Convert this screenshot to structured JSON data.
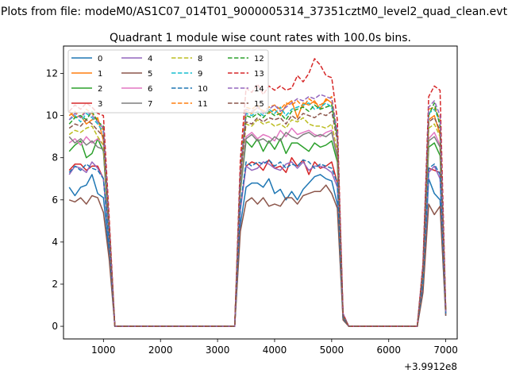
{
  "chart_data": {
    "type": "line",
    "suptitle": "Plots from file: modeM0/AS1C07_014T01_9000005314_37351cztM0_level2_quad_clean.evt",
    "title": "Quadrant 1 module wise count rates with 100.0s bins.",
    "xlabel": "",
    "ylabel": "",
    "x_offset_label": "+3.9912e8",
    "xlim": [
      300,
      7200
    ],
    "ylim": [
      -0.6,
      13.3
    ],
    "xticks": [
      1000,
      2000,
      3000,
      4000,
      5000,
      6000,
      7000
    ],
    "xtick_labels": [
      "1000",
      "2000",
      "3000",
      "4000",
      "5000",
      "6000",
      "7000"
    ],
    "yticks": [
      0,
      2,
      4,
      6,
      8,
      10,
      12
    ],
    "ytick_labels": [
      "0",
      "2",
      "4",
      "6",
      "8",
      "10",
      "12"
    ],
    "grid": false,
    "legend": {
      "location": "top-left",
      "columns": 4
    },
    "x": [
      400,
      500,
      600,
      700,
      800,
      900,
      1000,
      1100,
      1200,
      3300,
      3400,
      3500,
      3600,
      3700,
      3800,
      3900,
      4000,
      4100,
      4200,
      4300,
      4400,
      4500,
      4600,
      4700,
      4800,
      4900,
      5000,
      5100,
      5200,
      5300,
      6500,
      6600,
      6700,
      6800,
      6900,
      7000
    ],
    "series": [
      {
        "name": "0",
        "color": "#1f77b4",
        "dash": false,
        "values": [
          6.6,
          6.2,
          6.6,
          6.7,
          7.2,
          6.3,
          6.1,
          3.5,
          0,
          0,
          4.8,
          6.6,
          6.8,
          6.8,
          6.6,
          7.0,
          6.3,
          6.5,
          6.0,
          6.4,
          6.0,
          6.5,
          6.8,
          7.1,
          7.2,
          7.0,
          6.9,
          5.8,
          0.4,
          0,
          0,
          1.8,
          7.0,
          6.3,
          6.0,
          0.5
        ]
      },
      {
        "name": "1",
        "color": "#ff7f0e",
        "dash": false,
        "values": [
          10.2,
          9.9,
          10.0,
          9.6,
          9.8,
          9.9,
          8.8,
          4.8,
          0,
          0,
          7.0,
          10.2,
          10.1,
          10.4,
          10.2,
          10.1,
          10.3,
          10.0,
          10.5,
          10.7,
          9.9,
          10.6,
          10.5,
          10.7,
          10.3,
          10.8,
          10.6,
          9.0,
          0.5,
          0,
          0,
          2.5,
          9.8,
          10.0,
          9.1,
          0.7
        ]
      },
      {
        "name": "2",
        "color": "#2ca02c",
        "dash": false,
        "values": [
          8.3,
          8.6,
          8.8,
          8.0,
          8.2,
          8.9,
          8.3,
          4.2,
          0,
          0,
          6.4,
          8.8,
          8.5,
          8.9,
          8.3,
          8.8,
          8.4,
          8.9,
          8.2,
          8.7,
          8.7,
          8.5,
          8.3,
          8.7,
          8.5,
          8.6,
          8.8,
          7.8,
          0.5,
          0,
          0,
          2.3,
          8.5,
          8.7,
          8.1,
          0.6
        ]
      },
      {
        "name": "3",
        "color": "#d62728",
        "dash": false,
        "values": [
          7.4,
          7.7,
          7.7,
          7.4,
          7.6,
          7.6,
          7.0,
          4.0,
          0,
          0,
          5.6,
          7.6,
          7.8,
          7.7,
          7.4,
          7.9,
          7.5,
          7.6,
          7.3,
          8.0,
          7.6,
          7.9,
          7.2,
          7.8,
          7.5,
          7.6,
          7.8,
          6.8,
          0.4,
          0,
          0,
          2.1,
          7.5,
          7.4,
          7.3,
          0.6
        ]
      },
      {
        "name": "4",
        "color": "#9467bd",
        "dash": false,
        "values": [
          7.2,
          7.6,
          7.5,
          7.3,
          7.8,
          7.5,
          7.0,
          4.0,
          0,
          0,
          5.5,
          7.6,
          7.4,
          7.5,
          7.8,
          7.7,
          7.5,
          7.4,
          7.7,
          7.8,
          7.5,
          7.8,
          7.4,
          7.6,
          7.6,
          7.5,
          7.3,
          6.6,
          0.4,
          0,
          0,
          2.0,
          7.3,
          7.6,
          7.0,
          0.6
        ]
      },
      {
        "name": "5",
        "color": "#8c564b",
        "dash": false,
        "values": [
          6.0,
          5.9,
          6.1,
          5.8,
          6.2,
          6.1,
          5.4,
          3.2,
          0,
          0,
          4.5,
          5.9,
          6.1,
          5.8,
          6.1,
          5.7,
          5.8,
          5.7,
          6.1,
          6.1,
          5.8,
          6.2,
          6.3,
          6.4,
          6.4,
          6.7,
          6.3,
          5.6,
          0.3,
          0,
          0,
          1.6,
          5.8,
          5.3,
          5.7,
          0.5
        ]
      },
      {
        "name": "6",
        "color": "#e377c2",
        "dash": false,
        "values": [
          8.7,
          8.9,
          8.6,
          9.0,
          8.7,
          8.9,
          8.6,
          4.4,
          0,
          0,
          6.6,
          9.0,
          9.2,
          8.9,
          9.1,
          9.0,
          8.8,
          9.3,
          9.0,
          9.4,
          9.1,
          9.2,
          9.3,
          9.1,
          9.0,
          9.2,
          9.3,
          8.1,
          0.5,
          0,
          0,
          2.4,
          8.9,
          9.2,
          8.6,
          0.6
        ]
      },
      {
        "name": "7",
        "color": "#7f7f7f",
        "dash": false,
        "values": [
          9.0,
          8.7,
          8.9,
          8.6,
          8.8,
          8.5,
          8.4,
          4.3,
          0,
          0,
          6.5,
          8.9,
          9.1,
          8.8,
          8.9,
          8.7,
          9.0,
          8.8,
          9.2,
          9.0,
          8.9,
          9.1,
          9.2,
          9.0,
          9.1,
          9.0,
          9.2,
          8.0,
          0.5,
          0,
          0,
          2.4,
          8.8,
          9.0,
          8.5,
          0.6
        ]
      },
      {
        "name": "8",
        "color": "#bcbd22",
        "dash": true,
        "values": [
          9.1,
          9.3,
          9.2,
          9.4,
          9.5,
          9.0,
          8.6,
          4.6,
          0,
          0,
          7.0,
          9.6,
          9.5,
          9.8,
          9.6,
          9.7,
          9.5,
          9.6,
          9.4,
          9.8,
          9.7,
          9.9,
          9.6,
          9.5,
          9.5,
          9.4,
          9.6,
          8.3,
          0.5,
          0,
          0,
          2.6,
          9.4,
          9.6,
          9.0,
          0.7
        ]
      },
      {
        "name": "9",
        "color": "#17becf",
        "dash": true,
        "values": [
          9.8,
          10.0,
          9.7,
          10.1,
          9.9,
          9.6,
          9.2,
          4.8,
          0,
          0,
          7.2,
          10.1,
          10.0,
          10.2,
          10.0,
          10.3,
          10.1,
          10.4,
          10.0,
          10.3,
          10.4,
          10.5,
          10.6,
          10.3,
          10.4,
          10.6,
          10.4,
          9.0,
          0.5,
          0,
          0,
          2.8,
          10.1,
          10.3,
          9.7,
          0.7
        ]
      },
      {
        "name": "10",
        "color": "#1f77b4",
        "dash": true,
        "values": [
          7.3,
          7.6,
          7.4,
          7.7,
          7.5,
          7.4,
          7.0,
          4.0,
          0,
          0,
          5.7,
          7.8,
          7.6,
          7.8,
          7.7,
          7.9,
          7.6,
          7.8,
          7.5,
          7.7,
          7.6,
          7.9,
          7.8,
          7.5,
          7.7,
          7.6,
          7.5,
          6.8,
          0.4,
          0,
          0,
          2.1,
          7.5,
          7.7,
          7.2,
          0.6
        ]
      },
      {
        "name": "11",
        "color": "#ff7f0e",
        "dash": true,
        "values": [
          10.0,
          10.2,
          9.9,
          10.3,
          10.1,
          9.8,
          9.3,
          5.0,
          0,
          0,
          7.6,
          10.4,
          10.3,
          10.5,
          10.2,
          10.4,
          10.5,
          10.3,
          10.6,
          10.5,
          10.7,
          10.4,
          10.8,
          10.6,
          10.5,
          10.7,
          10.9,
          9.2,
          0.6,
          0,
          0,
          2.9,
          10.3,
          10.4,
          9.8,
          0.7
        ]
      },
      {
        "name": "12",
        "color": "#2ca02c",
        "dash": true,
        "values": [
          9.6,
          9.9,
          10.0,
          9.8,
          10.2,
          9.7,
          9.5,
          4.9,
          0,
          0,
          7.4,
          10.0,
          9.9,
          10.1,
          9.9,
          10.2,
          10.0,
          10.1,
          9.8,
          10.2,
          10.3,
          10.4,
          10.2,
          10.5,
          10.3,
          10.4,
          10.5,
          9.0,
          0.5,
          0,
          0,
          2.8,
          10.0,
          10.6,
          9.5,
          0.7
        ]
      },
      {
        "name": "13",
        "color": "#d62728",
        "dash": true,
        "values": [
          10.2,
          10.5,
          10.3,
          10.6,
          10.4,
          10.1,
          10.0,
          5.2,
          0,
          0,
          7.9,
          11.3,
          11.1,
          11.5,
          11.0,
          11.4,
          11.2,
          11.4,
          11.2,
          11.3,
          11.9,
          11.6,
          12.0,
          12.7,
          12.4,
          11.9,
          11.8,
          9.8,
          0.6,
          0,
          0,
          3.0,
          10.9,
          11.4,
          11.2,
          0.8
        ]
      },
      {
        "name": "14",
        "color": "#9467bd",
        "dash": true,
        "values": [
          9.8,
          10.1,
          9.9,
          10.2,
          10.0,
          9.7,
          9.4,
          4.8,
          0,
          0,
          7.3,
          10.3,
          10.2,
          10.4,
          10.1,
          10.3,
          10.5,
          10.2,
          10.4,
          10.6,
          10.8,
          10.7,
          10.9,
          10.8,
          11.0,
          10.9,
          10.8,
          9.2,
          0.6,
          0,
          0,
          2.9,
          10.4,
          10.7,
          10.0,
          0.7
        ]
      },
      {
        "name": "15",
        "color": "#8c564b",
        "dash": true,
        "values": [
          9.4,
          9.6,
          9.5,
          9.8,
          9.6,
          9.3,
          9.0,
          4.7,
          0,
          0,
          7.1,
          9.7,
          9.6,
          9.9,
          9.7,
          9.9,
          9.8,
          9.9,
          9.6,
          10.0,
          9.8,
          10.1,
          10.0,
          9.9,
          10.1,
          10.0,
          10.2,
          8.8,
          0.5,
          0,
          0,
          2.7,
          9.7,
          9.9,
          9.3,
          0.7
        ]
      }
    ]
  }
}
